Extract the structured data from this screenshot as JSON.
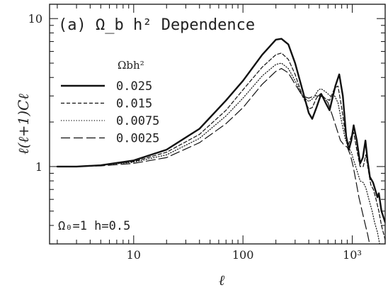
{
  "chart_data": {
    "type": "line",
    "title": "(a) Ω_b h² Dependence",
    "annotation": "Ω₀=1  h=0.5",
    "xlabel": "ℓ",
    "ylabel": "ℓ(ℓ+1)Cℓ",
    "xscale": "log",
    "yscale": "log",
    "xlim": [
      1.7,
      2000
    ],
    "ylim": [
      0.3,
      12.5
    ],
    "x_ticks": [
      {
        "value": 10,
        "label": "10"
      },
      {
        "value": 100,
        "label": "100"
      },
      {
        "value": 1000,
        "label": "10³"
      }
    ],
    "y_ticks": [
      {
        "value": 1,
        "label": "1"
      },
      {
        "value": 10,
        "label": "10"
      }
    ],
    "legend": {
      "title": "Ωbh²",
      "placement": "upper-left"
    },
    "series": [
      {
        "name": "0.025",
        "style": "solid",
        "width": 2.4,
        "points": [
          [
            2,
            1.0
          ],
          [
            3,
            1.0
          ],
          [
            5,
            1.02
          ],
          [
            10,
            1.1
          ],
          [
            20,
            1.3
          ],
          [
            40,
            1.8
          ],
          [
            70,
            2.8
          ],
          [
            100,
            3.8
          ],
          [
            150,
            5.7
          ],
          [
            200,
            7.2
          ],
          [
            225,
            7.3
          ],
          [
            260,
            6.7
          ],
          [
            300,
            5.0
          ],
          [
            350,
            3.3
          ],
          [
            400,
            2.3
          ],
          [
            430,
            2.1
          ],
          [
            470,
            2.5
          ],
          [
            520,
            3.1
          ],
          [
            570,
            2.7
          ],
          [
            620,
            2.4
          ],
          [
            700,
            3.5
          ],
          [
            760,
            4.2
          ],
          [
            820,
            3.0
          ],
          [
            880,
            1.6
          ],
          [
            930,
            1.3
          ],
          [
            980,
            1.5
          ],
          [
            1030,
            1.9
          ],
          [
            1100,
            1.5
          ],
          [
            1180,
            1.05
          ],
          [
            1250,
            1.15
          ],
          [
            1320,
            1.5
          ],
          [
            1380,
            1.1
          ],
          [
            1450,
            0.85
          ],
          [
            1550,
            0.78
          ],
          [
            1620,
            0.7
          ],
          [
            1700,
            0.62
          ],
          [
            1750,
            0.66
          ],
          [
            1850,
            0.5
          ],
          [
            2000,
            0.42
          ]
        ]
      },
      {
        "name": "0.015",
        "style": "dashed",
        "width": 1.2,
        "points": [
          [
            2,
            1.0
          ],
          [
            3,
            1.0
          ],
          [
            5,
            1.02
          ],
          [
            10,
            1.08
          ],
          [
            20,
            1.25
          ],
          [
            40,
            1.65
          ],
          [
            70,
            2.4
          ],
          [
            100,
            3.3
          ],
          [
            150,
            4.7
          ],
          [
            200,
            5.7
          ],
          [
            225,
            5.85
          ],
          [
            260,
            5.3
          ],
          [
            300,
            4.2
          ],
          [
            350,
            3.0
          ],
          [
            400,
            2.45
          ],
          [
            430,
            2.5
          ],
          [
            470,
            2.9
          ],
          [
            510,
            3.1
          ],
          [
            560,
            2.9
          ],
          [
            620,
            2.8
          ],
          [
            690,
            3.4
          ],
          [
            740,
            3.5
          ],
          [
            800,
            2.5
          ],
          [
            860,
            1.7
          ],
          [
            920,
            1.4
          ],
          [
            980,
            1.6
          ],
          [
            1030,
            1.7
          ],
          [
            1100,
            1.3
          ],
          [
            1180,
            1.0
          ],
          [
            1260,
            1.0
          ],
          [
            1330,
            1.2
          ],
          [
            1400,
            0.95
          ],
          [
            1480,
            0.75
          ],
          [
            1560,
            0.7
          ],
          [
            1650,
            0.6
          ],
          [
            1750,
            0.5
          ],
          [
            1850,
            0.4
          ],
          [
            2000,
            0.32
          ]
        ]
      },
      {
        "name": "0.0075",
        "style": "dotted",
        "width": 1.2,
        "points": [
          [
            2,
            1.0
          ],
          [
            3,
            1.0
          ],
          [
            5,
            1.02
          ],
          [
            10,
            1.07
          ],
          [
            20,
            1.2
          ],
          [
            40,
            1.55
          ],
          [
            70,
            2.2
          ],
          [
            100,
            2.9
          ],
          [
            150,
            4.1
          ],
          [
            200,
            4.9
          ],
          [
            225,
            5.0
          ],
          [
            260,
            4.6
          ],
          [
            300,
            3.8
          ],
          [
            350,
            3.0
          ],
          [
            400,
            2.75
          ],
          [
            440,
            2.9
          ],
          [
            490,
            3.3
          ],
          [
            520,
            3.35
          ],
          [
            570,
            3.2
          ],
          [
            630,
            3.0
          ],
          [
            690,
            3.0
          ],
          [
            740,
            2.7
          ],
          [
            800,
            2.0
          ],
          [
            860,
            1.55
          ],
          [
            920,
            1.35
          ],
          [
            980,
            1.25
          ],
          [
            1030,
            1.1
          ],
          [
            1100,
            0.95
          ],
          [
            1180,
            0.8
          ],
          [
            1260,
            0.78
          ],
          [
            1330,
            0.72
          ],
          [
            1420,
            0.6
          ],
          [
            1520,
            0.5
          ],
          [
            1600,
            0.42
          ],
          [
            1700,
            0.36
          ],
          [
            1780,
            0.3
          ]
        ]
      },
      {
        "name": "0.0025",
        "style": "longdash",
        "width": 1.2,
        "points": [
          [
            2,
            1.0
          ],
          [
            3,
            1.0
          ],
          [
            5,
            1.01
          ],
          [
            10,
            1.05
          ],
          [
            20,
            1.15
          ],
          [
            40,
            1.45
          ],
          [
            70,
            1.95
          ],
          [
            100,
            2.5
          ],
          [
            150,
            3.6
          ],
          [
            200,
            4.4
          ],
          [
            225,
            4.6
          ],
          [
            260,
            4.3
          ],
          [
            300,
            3.6
          ],
          [
            350,
            3.0
          ],
          [
            400,
            2.9
          ],
          [
            450,
            3.0
          ],
          [
            500,
            3.0
          ],
          [
            550,
            2.95
          ],
          [
            600,
            2.7
          ],
          [
            660,
            2.2
          ],
          [
            720,
            1.8
          ],
          [
            780,
            1.5
          ],
          [
            840,
            1.4
          ],
          [
            900,
            1.35
          ],
          [
            960,
            1.2
          ],
          [
            1020,
            1.0
          ],
          [
            1080,
            0.8
          ],
          [
            1150,
            0.62
          ],
          [
            1230,
            0.5
          ],
          [
            1300,
            0.42
          ],
          [
            1380,
            0.35
          ],
          [
            1440,
            0.3
          ]
        ]
      }
    ]
  }
}
